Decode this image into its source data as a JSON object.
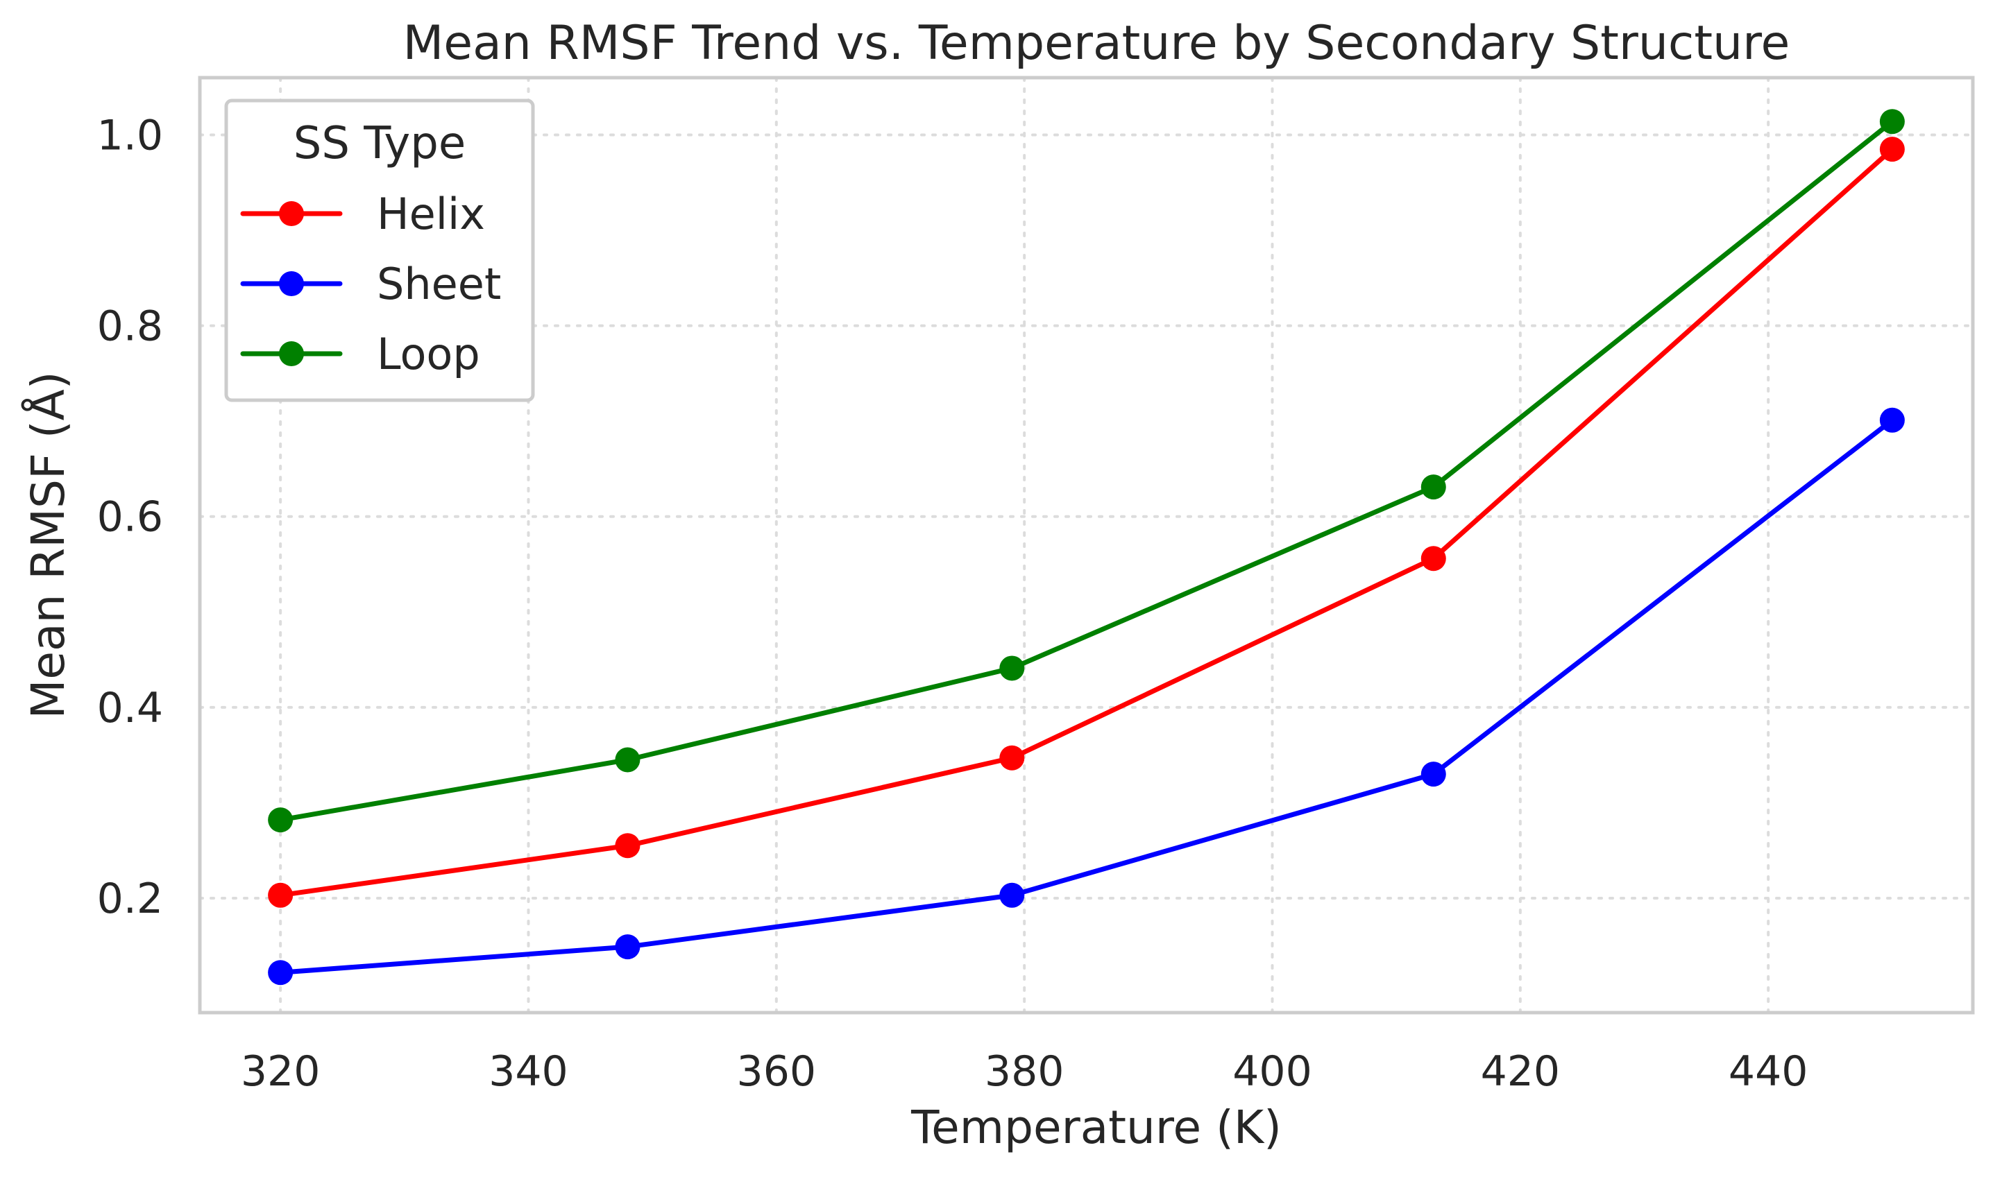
{
  "chart_data": {
    "type": "line",
    "title": "Mean RMSF Trend vs. Temperature by Secondary Structure",
    "xlabel": "Temperature (K)",
    "ylabel": "Mean RMSF (Å)",
    "x": [
      320,
      348,
      379,
      413,
      450
    ],
    "xlim": [
      313.5,
      456.5
    ],
    "ylim": [
      0.08,
      1.06
    ],
    "xticks": [
      "320",
      "340",
      "360",
      "380",
      "400",
      "420",
      "440"
    ],
    "yticks": [
      "0.2",
      "0.4",
      "0.6",
      "0.8",
      "1.0"
    ],
    "grid": true,
    "legend": {
      "title": "SS Type",
      "placement": "top-left"
    },
    "series": [
      {
        "name": "Helix",
        "color": "#ff0000",
        "values": [
          0.203,
          0.255,
          0.347,
          0.556,
          0.985
        ]
      },
      {
        "name": "Sheet",
        "color": "#0000ff",
        "values": [
          0.122,
          0.149,
          0.203,
          0.33,
          0.701
        ]
      },
      {
        "name": "Loop",
        "color": "#008000",
        "values": [
          0.282,
          0.345,
          0.441,
          0.631,
          1.014
        ]
      }
    ]
  }
}
